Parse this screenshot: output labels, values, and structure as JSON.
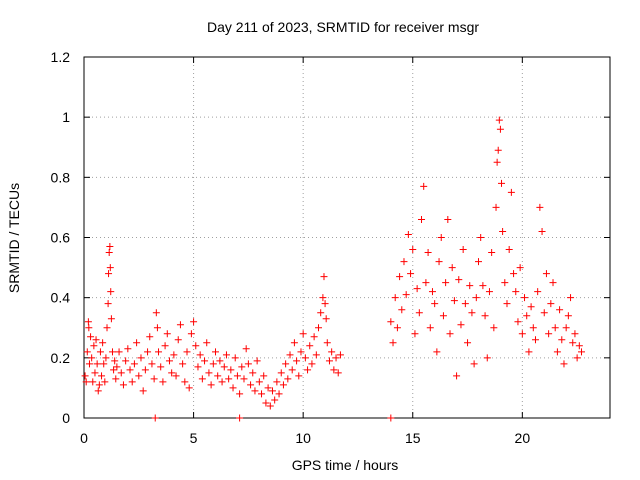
{
  "chart_data": {
    "type": "scatter",
    "title": "Day 211 of 2023, SRMTID for receiver msgr",
    "xlabel": "GPS time / hours",
    "ylabel": "SRMTID / TECUs",
    "xlim": [
      0,
      24
    ],
    "ylim": [
      0,
      1.2
    ],
    "x_ticks": [
      0,
      5,
      10,
      15,
      20
    ],
    "x_tick_labels": [
      "0",
      "5",
      "10",
      "15",
      "20"
    ],
    "y_ticks": [
      0,
      0.2,
      0.4,
      0.6,
      0.8,
      1.0,
      1.2
    ],
    "y_tick_labels": [
      "0",
      "0.2",
      "0.4",
      "0.6",
      "0.8",
      "1",
      "1.2"
    ],
    "grid": true,
    "marker": "plus",
    "color": "#ff0000",
    "series": [
      {
        "name": "SRMTID",
        "points": [
          [
            0.05,
            0.14
          ],
          [
            0.1,
            0.12
          ],
          [
            0.15,
            0.22
          ],
          [
            0.2,
            0.32
          ],
          [
            0.22,
            0.3
          ],
          [
            0.25,
            0.18
          ],
          [
            0.3,
            0.27
          ],
          [
            0.35,
            0.2
          ],
          [
            0.4,
            0.12
          ],
          [
            0.45,
            0.24
          ],
          [
            0.5,
            0.15
          ],
          [
            0.55,
            0.26
          ],
          [
            0.6,
            0.18
          ],
          [
            0.65,
            0.09
          ],
          [
            0.7,
            0.11
          ],
          [
            0.75,
            0.22
          ],
          [
            0.8,
            0.14
          ],
          [
            0.85,
            0.25
          ],
          [
            0.9,
            0.18
          ],
          [
            0.95,
            0.12
          ],
          [
            1.0,
            0.2
          ],
          [
            1.05,
            0.3
          ],
          [
            1.1,
            0.38
          ],
          [
            1.12,
            0.48
          ],
          [
            1.15,
            0.55
          ],
          [
            1.18,
            0.57
          ],
          [
            1.2,
            0.5
          ],
          [
            1.22,
            0.42
          ],
          [
            1.25,
            0.33
          ],
          [
            1.3,
            0.22
          ],
          [
            1.35,
            0.16
          ],
          [
            1.4,
            0.19
          ],
          [
            1.45,
            0.13
          ],
          [
            1.5,
            0.17
          ],
          [
            1.6,
            0.22
          ],
          [
            1.7,
            0.15
          ],
          [
            1.8,
            0.11
          ],
          [
            1.9,
            0.19
          ],
          [
            2.0,
            0.23
          ],
          [
            2.1,
            0.16
          ],
          [
            2.2,
            0.12
          ],
          [
            2.3,
            0.18
          ],
          [
            2.4,
            0.25
          ],
          [
            2.5,
            0.14
          ],
          [
            2.6,
            0.2
          ],
          [
            2.7,
            0.09
          ],
          [
            2.8,
            0.16
          ],
          [
            2.9,
            0.22
          ],
          [
            3.0,
            0.27
          ],
          [
            3.1,
            0.18
          ],
          [
            3.2,
            0.13
          ],
          [
            3.3,
            0.35
          ],
          [
            3.35,
            0.3
          ],
          [
            3.4,
            0.22
          ],
          [
            3.5,
            0.17
          ],
          [
            3.6,
            0.12
          ],
          [
            3.7,
            0.24
          ],
          [
            3.8,
            0.28
          ],
          [
            3.9,
            0.19
          ],
          [
            4.0,
            0.15
          ],
          [
            4.1,
            0.21
          ],
          [
            4.2,
            0.14
          ],
          [
            4.3,
            0.26
          ],
          [
            4.4,
            0.31
          ],
          [
            4.5,
            0.18
          ],
          [
            4.6,
            0.12
          ],
          [
            4.7,
            0.22
          ],
          [
            4.8,
            0.1
          ],
          [
            4.9,
            0.28
          ],
          [
            5.0,
            0.32
          ],
          [
            5.1,
            0.24
          ],
          [
            5.2,
            0.17
          ],
          [
            5.3,
            0.21
          ],
          [
            5.4,
            0.13
          ],
          [
            5.5,
            0.19
          ],
          [
            5.6,
            0.25
          ],
          [
            5.7,
            0.15
          ],
          [
            5.8,
            0.11
          ],
          [
            5.9,
            0.18
          ],
          [
            6.0,
            0.22
          ],
          [
            6.1,
            0.14
          ],
          [
            6.2,
            0.19
          ],
          [
            6.3,
            0.12
          ],
          [
            6.4,
            0.17
          ],
          [
            6.5,
            0.21
          ],
          [
            6.6,
            0.13
          ],
          [
            6.7,
            0.16
          ],
          [
            6.8,
            0.1
          ],
          [
            6.9,
            0.2
          ],
          [
            7.0,
            0.14
          ],
          [
            7.1,
            0.08
          ],
          [
            7.2,
            0.17
          ],
          [
            7.3,
            0.13
          ],
          [
            7.4,
            0.23
          ],
          [
            7.5,
            0.18
          ],
          [
            7.6,
            0.11
          ],
          [
            7.7,
            0.15
          ],
          [
            7.8,
            0.09
          ],
          [
            7.9,
            0.19
          ],
          [
            8.0,
            0.12
          ],
          [
            8.1,
            0.08
          ],
          [
            8.2,
            0.14
          ],
          [
            8.3,
            0.05
          ],
          [
            8.4,
            0.1
          ],
          [
            8.5,
            0.04
          ],
          [
            8.6,
            0.09
          ],
          [
            8.7,
            0.06
          ],
          [
            8.8,
            0.12
          ],
          [
            8.9,
            0.08
          ],
          [
            9.0,
            0.15
          ],
          [
            9.1,
            0.11
          ],
          [
            9.2,
            0.18
          ],
          [
            9.3,
            0.13
          ],
          [
            9.4,
            0.21
          ],
          [
            9.5,
            0.16
          ],
          [
            9.6,
            0.25
          ],
          [
            9.7,
            0.19
          ],
          [
            9.8,
            0.14
          ],
          [
            9.9,
            0.22
          ],
          [
            10.0,
            0.28
          ],
          [
            10.1,
            0.2
          ],
          [
            10.2,
            0.16
          ],
          [
            10.3,
            0.24
          ],
          [
            10.4,
            0.18
          ],
          [
            10.5,
            0.27
          ],
          [
            10.6,
            0.21
          ],
          [
            10.7,
            0.3
          ],
          [
            10.8,
            0.35
          ],
          [
            10.9,
            0.4
          ],
          [
            10.95,
            0.47
          ],
          [
            11.0,
            0.38
          ],
          [
            11.05,
            0.33
          ],
          [
            11.1,
            0.25
          ],
          [
            11.2,
            0.19
          ],
          [
            11.3,
            0.22
          ],
          [
            11.4,
            0.16
          ],
          [
            11.5,
            0.2
          ],
          [
            11.6,
            0.15
          ],
          [
            11.7,
            0.21
          ],
          [
            3.25,
            0.0
          ],
          [
            7.1,
            0.0
          ],
          [
            14.0,
            0.0
          ],
          [
            14.0,
            0.32
          ],
          [
            14.1,
            0.25
          ],
          [
            14.2,
            0.4
          ],
          [
            14.3,
            0.3
          ],
          [
            14.4,
            0.47
          ],
          [
            14.5,
            0.36
          ],
          [
            14.6,
            0.52
          ],
          [
            14.7,
            0.41
          ],
          [
            14.8,
            0.61
          ],
          [
            14.9,
            0.48
          ],
          [
            15.0,
            0.56
          ],
          [
            15.1,
            0.28
          ],
          [
            15.2,
            0.43
          ],
          [
            15.3,
            0.35
          ],
          [
            15.4,
            0.66
          ],
          [
            15.5,
            0.77
          ],
          [
            15.6,
            0.45
          ],
          [
            15.7,
            0.55
          ],
          [
            15.8,
            0.3
          ],
          [
            15.9,
            0.42
          ],
          [
            16.0,
            0.38
          ],
          [
            16.1,
            0.22
          ],
          [
            16.2,
            0.52
          ],
          [
            16.3,
            0.6
          ],
          [
            16.4,
            0.34
          ],
          [
            16.5,
            0.45
          ],
          [
            16.6,
            0.66
          ],
          [
            16.7,
            0.28
          ],
          [
            16.8,
            0.5
          ],
          [
            16.9,
            0.39
          ],
          [
            17.0,
            0.14
          ],
          [
            17.1,
            0.46
          ],
          [
            17.2,
            0.31
          ],
          [
            17.3,
            0.56
          ],
          [
            17.4,
            0.38
          ],
          [
            17.5,
            0.25
          ],
          [
            17.6,
            0.44
          ],
          [
            17.7,
            0.35
          ],
          [
            17.8,
            0.18
          ],
          [
            17.9,
            0.4
          ],
          [
            18.0,
            0.52
          ],
          [
            18.1,
            0.6
          ],
          [
            18.2,
            0.44
          ],
          [
            18.3,
            0.34
          ],
          [
            18.4,
            0.2
          ],
          [
            18.5,
            0.42
          ],
          [
            18.6,
            0.55
          ],
          [
            18.7,
            0.3
          ],
          [
            18.8,
            0.7
          ],
          [
            18.85,
            0.85
          ],
          [
            18.9,
            0.89
          ],
          [
            18.95,
            0.99
          ],
          [
            19.0,
            0.96
          ],
          [
            19.05,
            0.78
          ],
          [
            19.1,
            0.62
          ],
          [
            19.2,
            0.45
          ],
          [
            19.3,
            0.38
          ],
          [
            19.4,
            0.56
          ],
          [
            19.5,
            0.75
          ],
          [
            19.6,
            0.48
          ],
          [
            19.7,
            0.42
          ],
          [
            19.8,
            0.32
          ],
          [
            19.9,
            0.5
          ],
          [
            20.0,
            0.28
          ],
          [
            20.1,
            0.4
          ],
          [
            20.2,
            0.34
          ],
          [
            20.3,
            0.22
          ],
          [
            20.4,
            0.37
          ],
          [
            20.5,
            0.3
          ],
          [
            20.6,
            0.26
          ],
          [
            20.7,
            0.42
          ],
          [
            20.8,
            0.7
          ],
          [
            20.9,
            0.62
          ],
          [
            21.0,
            0.35
          ],
          [
            21.1,
            0.48
          ],
          [
            21.2,
            0.28
          ],
          [
            21.3,
            0.38
          ],
          [
            21.4,
            0.45
          ],
          [
            21.5,
            0.3
          ],
          [
            21.6,
            0.22
          ],
          [
            21.7,
            0.36
          ],
          [
            21.8,
            0.26
          ],
          [
            21.9,
            0.18
          ],
          [
            22.0,
            0.3
          ],
          [
            22.1,
            0.34
          ],
          [
            22.2,
            0.4
          ],
          [
            22.3,
            0.25
          ],
          [
            22.4,
            0.28
          ],
          [
            22.5,
            0.2
          ],
          [
            22.6,
            0.24
          ],
          [
            22.7,
            0.22
          ]
        ]
      }
    ]
  }
}
